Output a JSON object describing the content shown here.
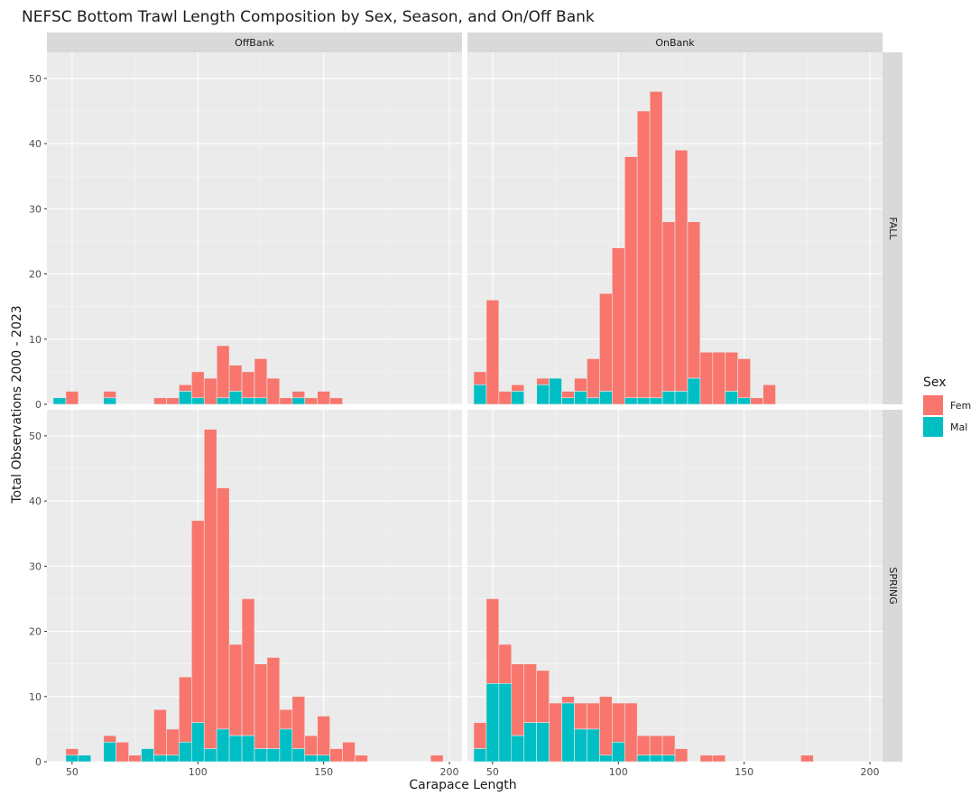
{
  "chart_data": {
    "type": "bar",
    "stacked": true,
    "title": "NEFSC Bottom Trawl Length Composition by Sex, Season, and On/Off Bank",
    "xlabel": "Carapace Length",
    "ylabel": "Total Observations 2000 - 2023",
    "xlim": [
      40,
      205
    ],
    "xticks": [
      50,
      100,
      150,
      200
    ],
    "ylim": [
      0,
      54
    ],
    "yticks": [
      0,
      10,
      20,
      30,
      40,
      50
    ],
    "bin_width": 5,
    "grid": true,
    "facet_cols": [
      "OffBank",
      "OnBank"
    ],
    "facet_rows": [
      "FALL",
      "SPRING"
    ],
    "legend": {
      "title": "Sex",
      "position": "right",
      "items": [
        {
          "label": "Fem",
          "color": "#F8766D"
        },
        {
          "label": "Mal",
          "color": "#00BFC4"
        }
      ]
    },
    "panels": [
      {
        "col": "OffBank",
        "row": "FALL",
        "bars": [
          {
            "x": 45,
            "fem": 0,
            "mal": 1
          },
          {
            "x": 50,
            "fem": 2,
            "mal": 0
          },
          {
            "x": 65,
            "fem": 1,
            "mal": 1
          },
          {
            "x": 85,
            "fem": 1,
            "mal": 0
          },
          {
            "x": 90,
            "fem": 1,
            "mal": 0
          },
          {
            "x": 95,
            "fem": 1,
            "mal": 2
          },
          {
            "x": 100,
            "fem": 4,
            "mal": 1
          },
          {
            "x": 105,
            "fem": 4,
            "mal": 0
          },
          {
            "x": 110,
            "fem": 8,
            "mal": 1
          },
          {
            "x": 115,
            "fem": 4,
            "mal": 2
          },
          {
            "x": 120,
            "fem": 4,
            "mal": 1
          },
          {
            "x": 125,
            "fem": 6,
            "mal": 1
          },
          {
            "x": 130,
            "fem": 4,
            "mal": 0
          },
          {
            "x": 135,
            "fem": 1,
            "mal": 0
          },
          {
            "x": 140,
            "fem": 1,
            "mal": 1
          },
          {
            "x": 145,
            "fem": 1,
            "mal": 0
          },
          {
            "x": 150,
            "fem": 2,
            "mal": 0
          },
          {
            "x": 155,
            "fem": 1,
            "mal": 0
          }
        ]
      },
      {
        "col": "OnBank",
        "row": "FALL",
        "bars": [
          {
            "x": 45,
            "fem": 2,
            "mal": 3
          },
          {
            "x": 50,
            "fem": 16,
            "mal": 0
          },
          {
            "x": 55,
            "fem": 2,
            "mal": 0
          },
          {
            "x": 60,
            "fem": 1,
            "mal": 2
          },
          {
            "x": 70,
            "fem": 1,
            "mal": 3
          },
          {
            "x": 75,
            "fem": 0,
            "mal": 4
          },
          {
            "x": 80,
            "fem": 1,
            "mal": 1
          },
          {
            "x": 85,
            "fem": 2,
            "mal": 2
          },
          {
            "x": 90,
            "fem": 6,
            "mal": 1
          },
          {
            "x": 95,
            "fem": 15,
            "mal": 2
          },
          {
            "x": 100,
            "fem": 24,
            "mal": 0
          },
          {
            "x": 105,
            "fem": 37,
            "mal": 1
          },
          {
            "x": 110,
            "fem": 44,
            "mal": 1
          },
          {
            "x": 115,
            "fem": 47,
            "mal": 1
          },
          {
            "x": 120,
            "fem": 26,
            "mal": 2
          },
          {
            "x": 125,
            "fem": 37,
            "mal": 2
          },
          {
            "x": 130,
            "fem": 24,
            "mal": 4
          },
          {
            "x": 135,
            "fem": 8,
            "mal": 0
          },
          {
            "x": 140,
            "fem": 8,
            "mal": 0
          },
          {
            "x": 145,
            "fem": 6,
            "mal": 2
          },
          {
            "x": 150,
            "fem": 6,
            "mal": 1
          },
          {
            "x": 155,
            "fem": 1,
            "mal": 0
          },
          {
            "x": 160,
            "fem": 3,
            "mal": 0
          }
        ]
      },
      {
        "col": "OffBank",
        "row": "SPRING",
        "bars": [
          {
            "x": 50,
            "fem": 1,
            "mal": 1
          },
          {
            "x": 55,
            "fem": 0,
            "mal": 1
          },
          {
            "x": 65,
            "fem": 1,
            "mal": 3
          },
          {
            "x": 70,
            "fem": 3,
            "mal": 0
          },
          {
            "x": 75,
            "fem": 1,
            "mal": 0
          },
          {
            "x": 80,
            "fem": 0,
            "mal": 2
          },
          {
            "x": 85,
            "fem": 7,
            "mal": 1
          },
          {
            "x": 90,
            "fem": 4,
            "mal": 1
          },
          {
            "x": 95,
            "fem": 10,
            "mal": 3
          },
          {
            "x": 100,
            "fem": 31,
            "mal": 6
          },
          {
            "x": 105,
            "fem": 49,
            "mal": 2
          },
          {
            "x": 110,
            "fem": 37,
            "mal": 5
          },
          {
            "x": 115,
            "fem": 14,
            "mal": 4
          },
          {
            "x": 120,
            "fem": 21,
            "mal": 4
          },
          {
            "x": 125,
            "fem": 13,
            "mal": 2
          },
          {
            "x": 130,
            "fem": 14,
            "mal": 2
          },
          {
            "x": 135,
            "fem": 3,
            "mal": 5
          },
          {
            "x": 140,
            "fem": 8,
            "mal": 2
          },
          {
            "x": 145,
            "fem": 3,
            "mal": 1
          },
          {
            "x": 150,
            "fem": 6,
            "mal": 1
          },
          {
            "x": 155,
            "fem": 2,
            "mal": 0
          },
          {
            "x": 160,
            "fem": 3,
            "mal": 0
          },
          {
            "x": 165,
            "fem": 1,
            "mal": 0
          },
          {
            "x": 195,
            "fem": 1,
            "mal": 0
          }
        ]
      },
      {
        "col": "OnBank",
        "row": "SPRING",
        "bars": [
          {
            "x": 45,
            "fem": 4,
            "mal": 2
          },
          {
            "x": 50,
            "fem": 13,
            "mal": 12
          },
          {
            "x": 55,
            "fem": 6,
            "mal": 12
          },
          {
            "x": 60,
            "fem": 11,
            "mal": 4
          },
          {
            "x": 65,
            "fem": 9,
            "mal": 6
          },
          {
            "x": 70,
            "fem": 8,
            "mal": 6
          },
          {
            "x": 75,
            "fem": 9,
            "mal": 0
          },
          {
            "x": 80,
            "fem": 1,
            "mal": 9
          },
          {
            "x": 85,
            "fem": 4,
            "mal": 5
          },
          {
            "x": 90,
            "fem": 4,
            "mal": 5
          },
          {
            "x": 95,
            "fem": 9,
            "mal": 1
          },
          {
            "x": 100,
            "fem": 6,
            "mal": 3
          },
          {
            "x": 105,
            "fem": 9,
            "mal": 0
          },
          {
            "x": 110,
            "fem": 3,
            "mal": 1
          },
          {
            "x": 115,
            "fem": 3,
            "mal": 1
          },
          {
            "x": 120,
            "fem": 3,
            "mal": 1
          },
          {
            "x": 125,
            "fem": 2,
            "mal": 0
          },
          {
            "x": 135,
            "fem": 1,
            "mal": 0
          },
          {
            "x": 140,
            "fem": 1,
            "mal": 0
          },
          {
            "x": 175,
            "fem": 1,
            "mal": 0
          }
        ]
      }
    ]
  }
}
